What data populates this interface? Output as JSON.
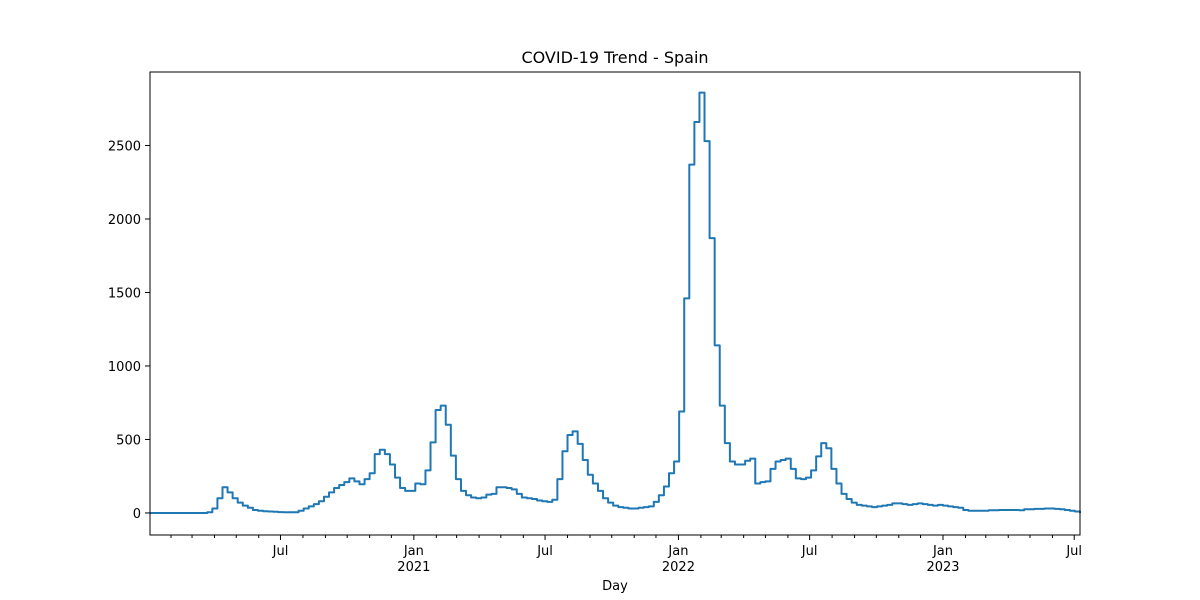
{
  "chart_data": {
    "type": "line",
    "title": "COVID-19 Trend - Spain",
    "xlabel": "Day",
    "ylabel": "",
    "color": "#1f77b4",
    "x_range": [
      "2020-01-03",
      "2023-07-09"
    ],
    "ylim": [
      -150,
      3000
    ],
    "yticks": [
      0,
      500,
      1000,
      1500,
      2000,
      2500
    ],
    "xticks_major": [
      {
        "date": "2020-07-01",
        "label": "Jul",
        "sublabel": ""
      },
      {
        "date": "2021-01-01",
        "label": "Jan",
        "sublabel": "2021"
      },
      {
        "date": "2021-07-01",
        "label": "Jul",
        "sublabel": ""
      },
      {
        "date": "2022-01-01",
        "label": "Jan",
        "sublabel": "2022"
      },
      {
        "date": "2022-07-01",
        "label": "Jul",
        "sublabel": ""
      },
      {
        "date": "2023-01-01",
        "label": "Jan",
        "sublabel": "2023"
      },
      {
        "date": "2023-07-01",
        "label": "Jul",
        "sublabel": ""
      }
    ],
    "xticks_minor": [
      "2020-02-01",
      "2020-03-01",
      "2020-04-01",
      "2020-05-01",
      "2020-06-01",
      "2020-08-01",
      "2020-09-01",
      "2020-10-01",
      "2020-11-01",
      "2020-12-01",
      "2021-02-01",
      "2021-03-01",
      "2021-04-01",
      "2021-05-01",
      "2021-06-01",
      "2021-08-01",
      "2021-09-01",
      "2021-10-01",
      "2021-11-01",
      "2021-12-01",
      "2022-02-01",
      "2022-03-01",
      "2022-04-01",
      "2022-05-01",
      "2022-06-01",
      "2022-08-01",
      "2022-09-01",
      "2022-10-01",
      "2022-11-01",
      "2022-12-01",
      "2023-02-01",
      "2023-03-01",
      "2023-04-01",
      "2023-05-01",
      "2023-06-01"
    ],
    "series": [
      {
        "name": "Spain",
        "step": "weekly",
        "points": [
          [
            "2020-01-03",
            0
          ],
          [
            "2020-03-15",
            0
          ],
          [
            "2020-03-22",
            5
          ],
          [
            "2020-03-29",
            30
          ],
          [
            "2020-04-05",
            100
          ],
          [
            "2020-04-12",
            175
          ],
          [
            "2020-04-19",
            140
          ],
          [
            "2020-04-26",
            100
          ],
          [
            "2020-05-03",
            70
          ],
          [
            "2020-05-10",
            50
          ],
          [
            "2020-05-17",
            35
          ],
          [
            "2020-05-24",
            20
          ],
          [
            "2020-05-31",
            15
          ],
          [
            "2020-06-07",
            12
          ],
          [
            "2020-06-14",
            10
          ],
          [
            "2020-06-21",
            8
          ],
          [
            "2020-06-28",
            6
          ],
          [
            "2020-07-05",
            5
          ],
          [
            "2020-07-12",
            5
          ],
          [
            "2020-07-19",
            5
          ],
          [
            "2020-07-26",
            15
          ],
          [
            "2020-08-02",
            30
          ],
          [
            "2020-08-09",
            45
          ],
          [
            "2020-08-16",
            60
          ],
          [
            "2020-08-23",
            80
          ],
          [
            "2020-08-30",
            110
          ],
          [
            "2020-09-06",
            140
          ],
          [
            "2020-09-13",
            170
          ],
          [
            "2020-09-20",
            190
          ],
          [
            "2020-09-27",
            210
          ],
          [
            "2020-10-04",
            235
          ],
          [
            "2020-10-11",
            215
          ],
          [
            "2020-10-18",
            195
          ],
          [
            "2020-10-25",
            230
          ],
          [
            "2020-11-01",
            270
          ],
          [
            "2020-11-08",
            400
          ],
          [
            "2020-11-15",
            430
          ],
          [
            "2020-11-22",
            400
          ],
          [
            "2020-11-29",
            330
          ],
          [
            "2020-12-06",
            240
          ],
          [
            "2020-12-13",
            170
          ],
          [
            "2020-12-20",
            150
          ],
          [
            "2020-12-27",
            150
          ],
          [
            "2021-01-03",
            200
          ],
          [
            "2021-01-10",
            195
          ],
          [
            "2021-01-17",
            290
          ],
          [
            "2021-01-24",
            480
          ],
          [
            "2021-01-31",
            700
          ],
          [
            "2021-02-07",
            730
          ],
          [
            "2021-02-14",
            600
          ],
          [
            "2021-02-21",
            390
          ],
          [
            "2021-02-28",
            230
          ],
          [
            "2021-03-07",
            150
          ],
          [
            "2021-03-14",
            120
          ],
          [
            "2021-03-21",
            105
          ],
          [
            "2021-03-28",
            100
          ],
          [
            "2021-04-04",
            105
          ],
          [
            "2021-04-11",
            125
          ],
          [
            "2021-04-18",
            130
          ],
          [
            "2021-04-25",
            175
          ],
          [
            "2021-05-02",
            175
          ],
          [
            "2021-05-09",
            170
          ],
          [
            "2021-05-16",
            160
          ],
          [
            "2021-05-23",
            130
          ],
          [
            "2021-05-30",
            105
          ],
          [
            "2021-06-06",
            100
          ],
          [
            "2021-06-13",
            95
          ],
          [
            "2021-06-20",
            85
          ],
          [
            "2021-06-27",
            80
          ],
          [
            "2021-07-04",
            75
          ],
          [
            "2021-07-11",
            90
          ],
          [
            "2021-07-18",
            230
          ],
          [
            "2021-07-25",
            420
          ],
          [
            "2021-08-01",
            530
          ],
          [
            "2021-08-08",
            555
          ],
          [
            "2021-08-15",
            470
          ],
          [
            "2021-08-22",
            360
          ],
          [
            "2021-08-29",
            260
          ],
          [
            "2021-09-05",
            200
          ],
          [
            "2021-09-12",
            150
          ],
          [
            "2021-09-19",
            100
          ],
          [
            "2021-09-26",
            70
          ],
          [
            "2021-10-03",
            50
          ],
          [
            "2021-10-10",
            40
          ],
          [
            "2021-10-17",
            35
          ],
          [
            "2021-10-24",
            30
          ],
          [
            "2021-10-31",
            30
          ],
          [
            "2021-11-07",
            35
          ],
          [
            "2021-11-14",
            40
          ],
          [
            "2021-11-21",
            45
          ],
          [
            "2021-11-28",
            75
          ],
          [
            "2021-12-05",
            120
          ],
          [
            "2021-12-12",
            180
          ],
          [
            "2021-12-19",
            270
          ],
          [
            "2021-12-26",
            350
          ],
          [
            "2022-01-02",
            690
          ],
          [
            "2022-01-09",
            1460
          ],
          [
            "2022-01-16",
            2370
          ],
          [
            "2022-01-23",
            2660
          ],
          [
            "2022-01-30",
            2860
          ],
          [
            "2022-02-06",
            2530
          ],
          [
            "2022-02-13",
            1870
          ],
          [
            "2022-02-20",
            1140
          ],
          [
            "2022-02-27",
            730
          ],
          [
            "2022-03-06",
            475
          ],
          [
            "2022-03-13",
            350
          ],
          [
            "2022-03-20",
            330
          ],
          [
            "2022-03-27",
            330
          ],
          [
            "2022-04-03",
            355
          ],
          [
            "2022-04-10",
            370
          ],
          [
            "2022-04-17",
            200
          ],
          [
            "2022-04-24",
            210
          ],
          [
            "2022-05-01",
            215
          ],
          [
            "2022-05-08",
            300
          ],
          [
            "2022-05-15",
            350
          ],
          [
            "2022-05-22",
            360
          ],
          [
            "2022-05-29",
            370
          ],
          [
            "2022-06-05",
            300
          ],
          [
            "2022-06-12",
            235
          ],
          [
            "2022-06-19",
            230
          ],
          [
            "2022-06-26",
            240
          ],
          [
            "2022-07-03",
            290
          ],
          [
            "2022-07-10",
            385
          ],
          [
            "2022-07-17",
            475
          ],
          [
            "2022-07-24",
            440
          ],
          [
            "2022-07-31",
            300
          ],
          [
            "2022-08-07",
            200
          ],
          [
            "2022-08-14",
            130
          ],
          [
            "2022-08-21",
            95
          ],
          [
            "2022-08-28",
            70
          ],
          [
            "2022-09-04",
            55
          ],
          [
            "2022-09-11",
            50
          ],
          [
            "2022-09-18",
            45
          ],
          [
            "2022-09-25",
            40
          ],
          [
            "2022-10-02",
            45
          ],
          [
            "2022-10-09",
            50
          ],
          [
            "2022-10-16",
            55
          ],
          [
            "2022-10-23",
            65
          ],
          [
            "2022-10-30",
            65
          ],
          [
            "2022-11-06",
            60
          ],
          [
            "2022-11-13",
            55
          ],
          [
            "2022-11-20",
            60
          ],
          [
            "2022-11-27",
            65
          ],
          [
            "2022-12-04",
            60
          ],
          [
            "2022-12-11",
            55
          ],
          [
            "2022-12-18",
            50
          ],
          [
            "2022-12-25",
            55
          ],
          [
            "2023-01-01",
            50
          ],
          [
            "2023-01-08",
            45
          ],
          [
            "2023-01-15",
            40
          ],
          [
            "2023-01-22",
            35
          ],
          [
            "2023-01-29",
            20
          ],
          [
            "2023-02-05",
            15
          ],
          [
            "2023-02-12",
            15
          ],
          [
            "2023-02-19",
            15
          ],
          [
            "2023-02-26",
            15
          ],
          [
            "2023-03-05",
            18
          ],
          [
            "2023-03-12",
            18
          ],
          [
            "2023-03-19",
            20
          ],
          [
            "2023-03-26",
            20
          ],
          [
            "2023-04-02",
            20
          ],
          [
            "2023-04-09",
            20
          ],
          [
            "2023-04-16",
            18
          ],
          [
            "2023-04-23",
            25
          ],
          [
            "2023-04-30",
            25
          ],
          [
            "2023-05-07",
            28
          ],
          [
            "2023-05-14",
            28
          ],
          [
            "2023-05-21",
            30
          ],
          [
            "2023-05-28",
            30
          ],
          [
            "2023-06-04",
            28
          ],
          [
            "2023-06-11",
            25
          ],
          [
            "2023-06-18",
            20
          ],
          [
            "2023-06-25",
            15
          ],
          [
            "2023-07-02",
            10
          ],
          [
            "2023-07-09",
            0
          ]
        ]
      }
    ]
  }
}
